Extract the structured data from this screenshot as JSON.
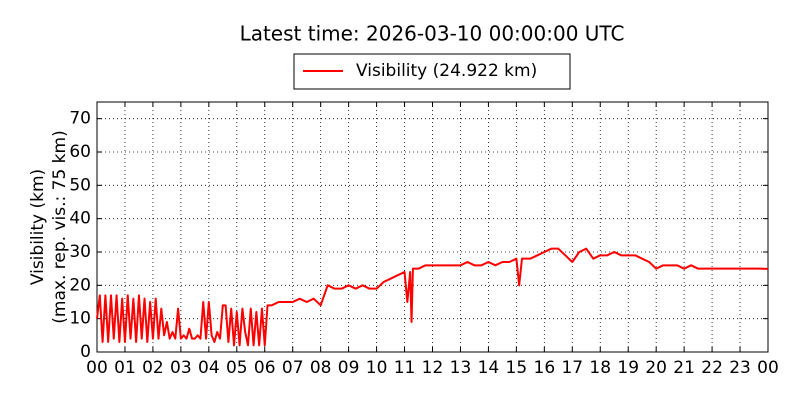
{
  "chart_data": {
    "type": "line",
    "title": "Latest time: 2026-03-10 00:00:00 UTC",
    "y_label": [
      "Visibility (km)",
      "(max. rep. vis.: 75 km)"
    ],
    "legend_position": "upper center",
    "grid": true,
    "xlim": [
      0,
      24
    ],
    "xticks": [
      {
        "value": 0,
        "label": "00"
      },
      {
        "value": 1,
        "label": "01"
      },
      {
        "value": 2,
        "label": "02"
      },
      {
        "value": 3,
        "label": "03"
      },
      {
        "value": 4,
        "label": "04"
      },
      {
        "value": 5,
        "label": "05"
      },
      {
        "value": 6,
        "label": "06"
      },
      {
        "value": 7,
        "label": "07"
      },
      {
        "value": 8,
        "label": "08"
      },
      {
        "value": 9,
        "label": "09"
      },
      {
        "value": 10,
        "label": "10"
      },
      {
        "value": 11,
        "label": "11"
      },
      {
        "value": 12,
        "label": "12"
      },
      {
        "value": 13,
        "label": "13"
      },
      {
        "value": 14,
        "label": "14"
      },
      {
        "value": 15,
        "label": "15"
      },
      {
        "value": 16,
        "label": "16"
      },
      {
        "value": 17,
        "label": "17"
      },
      {
        "value": 18,
        "label": "18"
      },
      {
        "value": 19,
        "label": "19"
      },
      {
        "value": 20,
        "label": "20"
      },
      {
        "value": 21,
        "label": "21"
      },
      {
        "value": 22,
        "label": "22"
      },
      {
        "value": 23,
        "label": "23"
      },
      {
        "value": 24,
        "label": "00"
      }
    ],
    "ylim": [
      0,
      75
    ],
    "yticks": [
      0,
      10,
      20,
      30,
      40,
      50,
      60,
      70
    ],
    "x": [
      0,
      0.1,
      0.2,
      0.3,
      0.4,
      0.5,
      0.6,
      0.7,
      0.8,
      0.9,
      1.0,
      1.1,
      1.2,
      1.3,
      1.4,
      1.5,
      1.6,
      1.7,
      1.8,
      1.9,
      2.0,
      2.1,
      2.2,
      2.3,
      2.4,
      2.5,
      2.6,
      2.7,
      2.8,
      2.9,
      3.0,
      3.1,
      3.2,
      3.3,
      3.4,
      3.5,
      3.6,
      3.7,
      3.8,
      3.9,
      4.0,
      4.1,
      4.2,
      4.3,
      4.4,
      4.5,
      4.6,
      4.7,
      4.8,
      4.9,
      5.0,
      5.1,
      5.2,
      5.3,
      5.4,
      5.5,
      5.6,
      5.7,
      5.8,
      5.9,
      6.0,
      6.1,
      6.25,
      6.5,
      6.75,
      7.0,
      7.25,
      7.5,
      7.75,
      8.0,
      8.25,
      8.5,
      8.75,
      9.0,
      9.25,
      9.5,
      9.75,
      10.0,
      10.25,
      10.5,
      10.75,
      11.0,
      11.1,
      11.2,
      11.25,
      11.3,
      11.5,
      11.75,
      12.0,
      12.25,
      12.5,
      12.75,
      13.0,
      13.25,
      13.5,
      13.75,
      14.0,
      14.25,
      14.5,
      14.75,
      15.0,
      15.1,
      15.2,
      15.5,
      15.75,
      16.0,
      16.25,
      16.5,
      16.75,
      17.0,
      17.25,
      17.5,
      17.75,
      18.0,
      18.25,
      18.5,
      18.75,
      19.0,
      19.25,
      19.5,
      19.75,
      20.0,
      20.25,
      20.5,
      20.75,
      21.0,
      21.25,
      21.5,
      21.75,
      22.0,
      22.5,
      23.0,
      23.5,
      23.75,
      24.0
    ],
    "series": [
      {
        "name": "Visibility (24.922 km)",
        "color": "#ff0000",
        "values": [
          10,
          17,
          3,
          17,
          3,
          17,
          4,
          17,
          3,
          16,
          3,
          17,
          4,
          16,
          3,
          17,
          4,
          16,
          3,
          15,
          4,
          16,
          4,
          13,
          5,
          9,
          4,
          6,
          4,
          13,
          4,
          5,
          4,
          7,
          4,
          4,
          5,
          4,
          15,
          4,
          15,
          5,
          3,
          6,
          4,
          14,
          14,
          3,
          13,
          2,
          12,
          2,
          13,
          6,
          2,
          13,
          2,
          12,
          2,
          13,
          2,
          14,
          14,
          15,
          15,
          15,
          16,
          15,
          16,
          14,
          20,
          19,
          19,
          20,
          19,
          20,
          19,
          19,
          21,
          22,
          23,
          24,
          15,
          24,
          9,
          25,
          25,
          26,
          26,
          26,
          26,
          26,
          26,
          27,
          26,
          26,
          27,
          26,
          27,
          27,
          28,
          20,
          28,
          28,
          29,
          30,
          31,
          31,
          29,
          27,
          30,
          31,
          28,
          29,
          29,
          30,
          29,
          29,
          29,
          28,
          27,
          25,
          26,
          26,
          26,
          25,
          26,
          25,
          25,
          25,
          25,
          25,
          25,
          25,
          24.922
        ]
      }
    ]
  }
}
